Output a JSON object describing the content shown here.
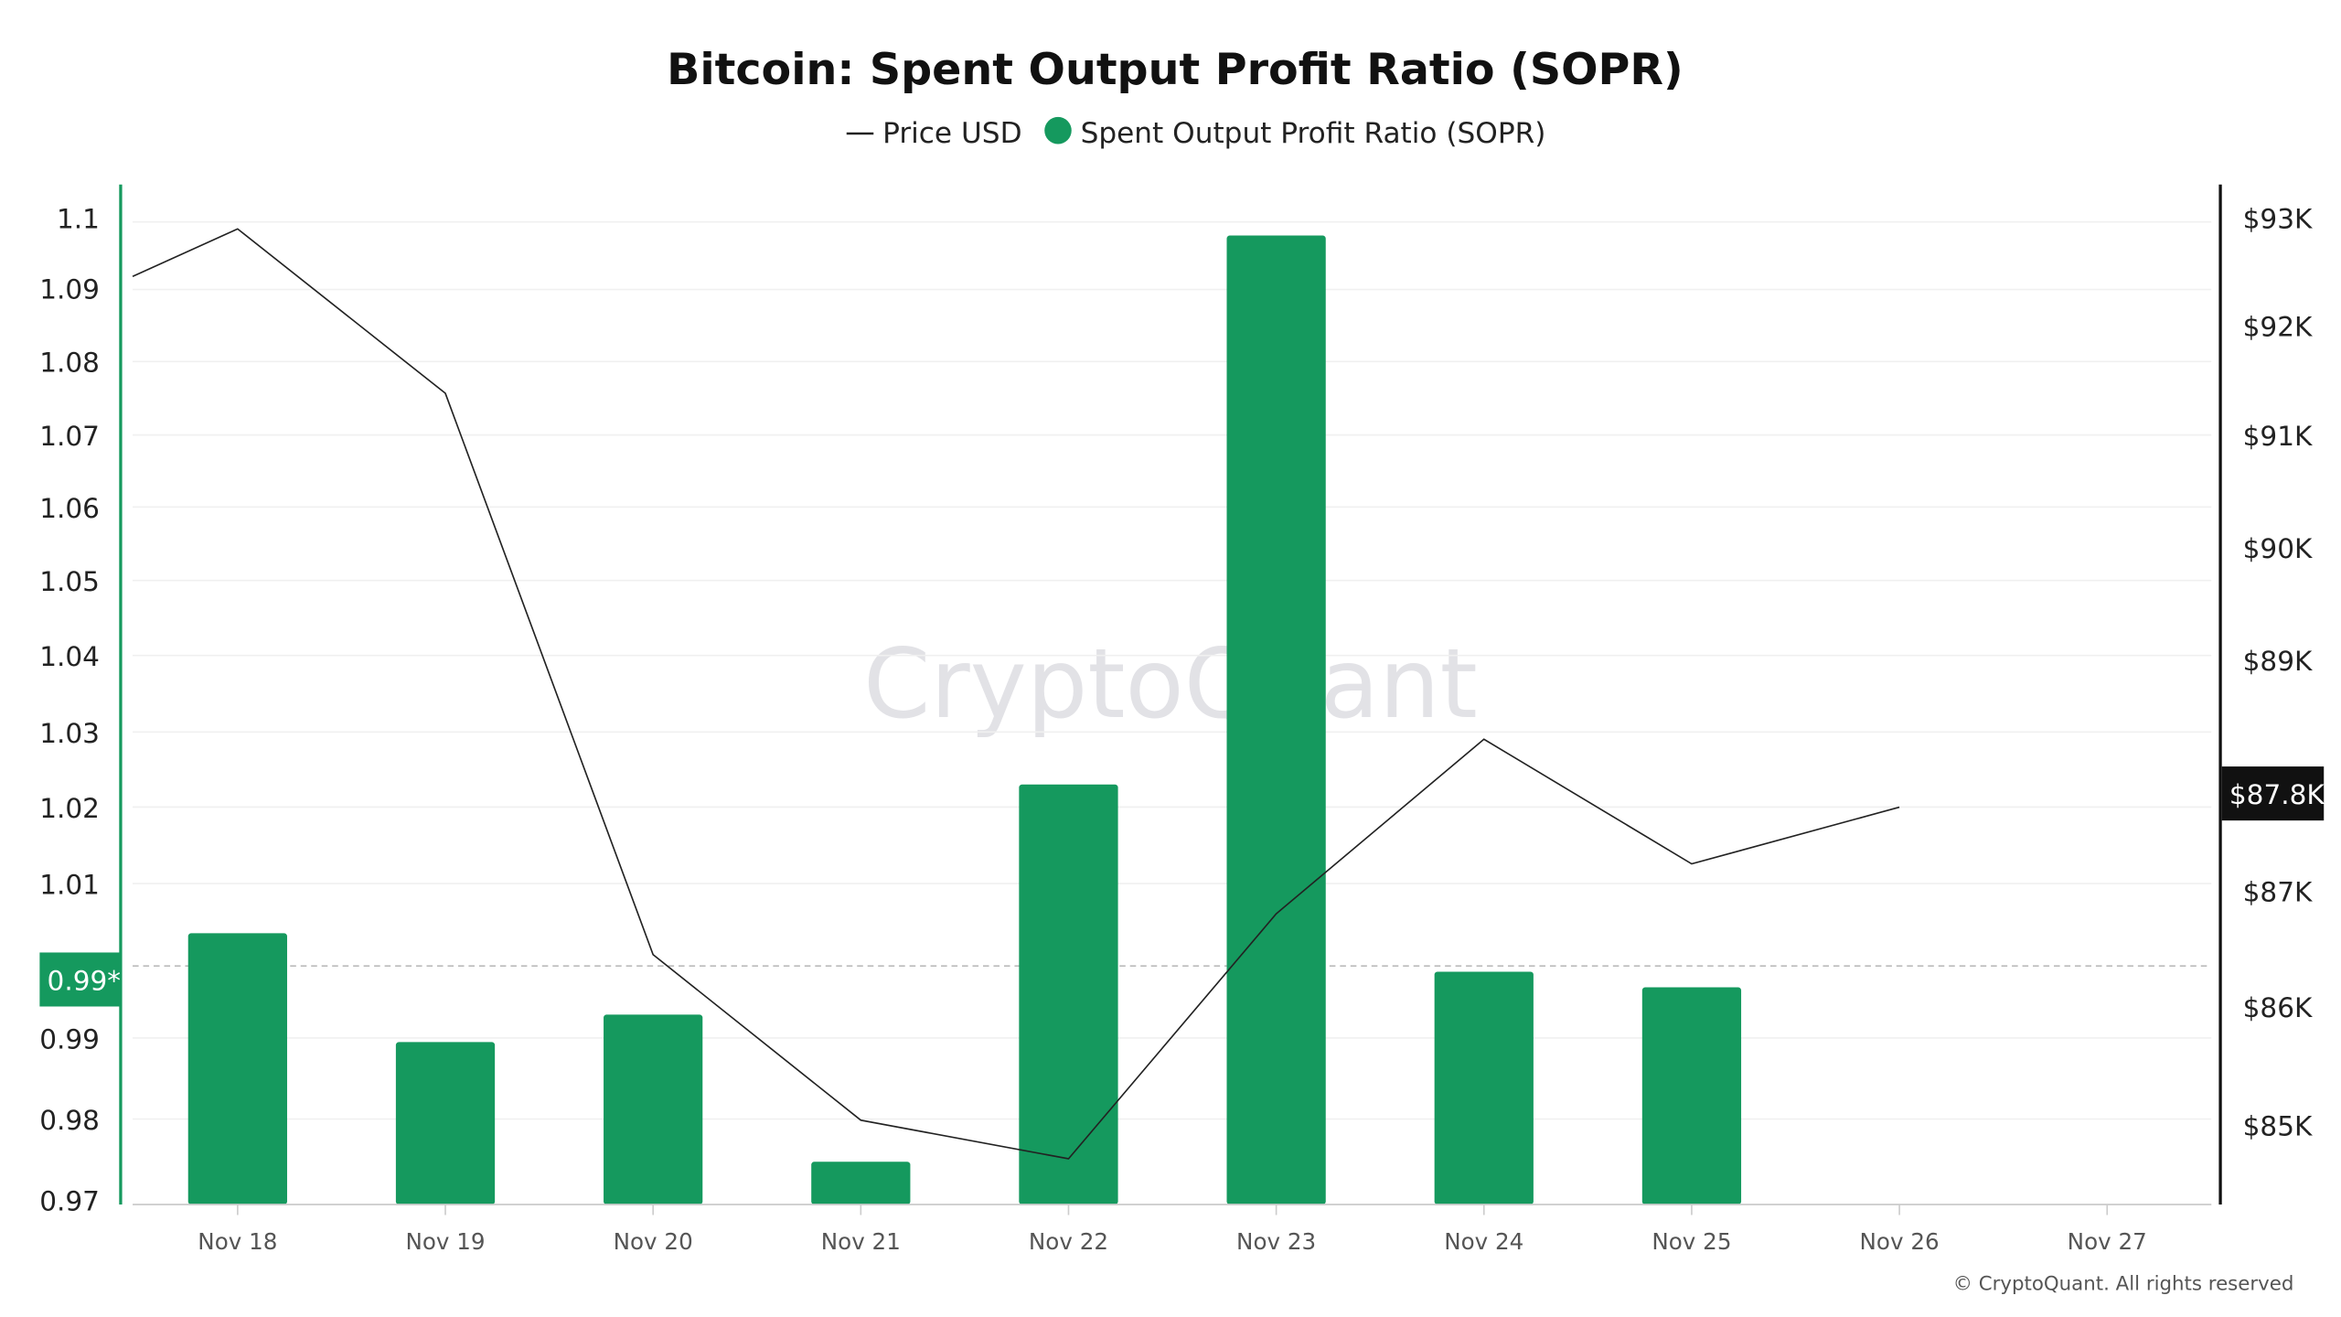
{
  "chart_data": {
    "type": "bar",
    "title": "Bitcoin: Spent Output Profit Ratio (SOPR)",
    "legend": {
      "placement": "top-center",
      "entries": [
        "Price USD",
        "Spent Output Profit Ratio (SOPR)"
      ]
    },
    "categories": [
      "Nov 18",
      "Nov 19",
      "Nov 20",
      "Nov 21",
      "Nov 22",
      "Nov 23",
      "Nov 24",
      "Nov 25",
      "Nov 26",
      "Nov 27"
    ],
    "series": [
      {
        "name": "Spent Output Profit Ratio (SOPR)",
        "type": "bar",
        "axis": "left",
        "color": "#15995e",
        "values": [
          1.0035,
          0.9895,
          0.993,
          0.975,
          1.023,
          1.098,
          0.9985,
          0.9965,
          null,
          null
        ]
      },
      {
        "name": "Price USD",
        "type": "line",
        "axis": "right",
        "color": "#222222",
        "x": [
          -0.5,
          0,
          1,
          2,
          3,
          4,
          5,
          6,
          7,
          8
        ],
        "values": [
          92480,
          92900,
          91450,
          86500,
          85040,
          84700,
          86860,
          88400,
          87300,
          87800
        ]
      }
    ],
    "left_axis": {
      "ticks": [
        "1.1",
        "1.09",
        "1.08",
        "1.07",
        "1.06",
        "1.05",
        "1.04",
        "1.03",
        "1.02",
        "1.01",
        "0.99",
        "0.98",
        "0.97"
      ],
      "ylim": [
        0.97,
        1.1
      ]
    },
    "right_axis": {
      "ticks": [
        "$93K",
        "$92K",
        "$91K",
        "$90K",
        "$89K",
        "$87K",
        "$86K",
        "$85K"
      ],
      "ylim": [
        84400,
        93000
      ]
    },
    "current_left_label": "0.99*",
    "current_right_label": "$87.8K",
    "grid": true,
    "watermark": "CryptoQuant",
    "copyright": "© CryptoQuant. All rights reserved"
  }
}
